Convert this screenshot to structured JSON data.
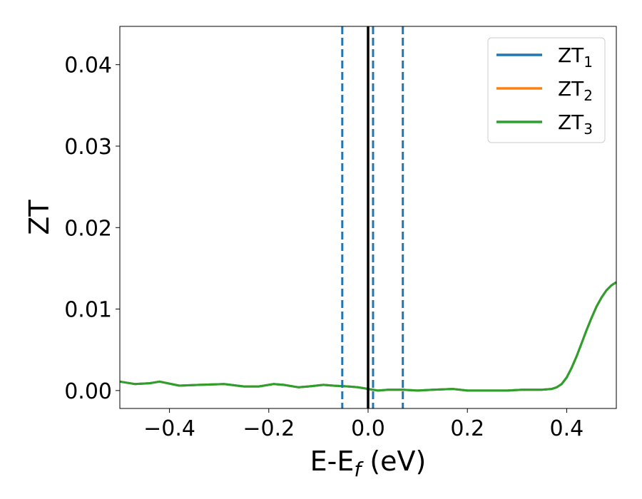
{
  "chart_data": {
    "type": "line",
    "xlabel_main": "E-E",
    "xlabel_sub": "f",
    "xlabel_unit": " (eV)",
    "ylabel": "ZT",
    "xlim": [
      -0.5,
      0.5
    ],
    "ylim": [
      -0.0022,
      0.0447
    ],
    "xticks": [
      -0.4,
      -0.2,
      0.0,
      0.2,
      0.4
    ],
    "xtick_labels": [
      "−0.4",
      "−0.2",
      "0.0",
      "0.2",
      "0.4"
    ],
    "yticks": [
      0.0,
      0.01,
      0.02,
      0.03,
      0.04
    ],
    "ytick_labels": [
      "0.00",
      "0.01",
      "0.02",
      "0.03",
      "0.04"
    ],
    "grid": false,
    "legend_position": "top-right",
    "vlines": [
      {
        "x": 0.0,
        "style": "solid",
        "color": "#000000"
      },
      {
        "x": -0.052,
        "style": "dashed",
        "color": "#1f77b4"
      },
      {
        "x": 0.01,
        "style": "dashed",
        "color": "#1f77b4"
      },
      {
        "x": 0.07,
        "style": "dashed",
        "color": "#1f77b4"
      }
    ],
    "series": [
      {
        "name": "ZT",
        "sub": "1",
        "color": "#1f77b4",
        "x": [
          -0.5,
          -0.47,
          -0.44,
          -0.42,
          -0.38,
          -0.34,
          -0.29,
          -0.25,
          -0.22,
          -0.19,
          -0.17,
          -0.14,
          -0.12,
          -0.09,
          -0.07,
          -0.04,
          -0.02,
          0.0,
          0.02,
          0.04,
          0.07,
          0.1,
          0.13,
          0.17,
          0.2,
          0.25,
          0.28,
          0.31,
          0.33,
          0.35,
          0.37,
          0.38,
          0.39,
          0.4,
          0.41,
          0.42,
          0.43,
          0.44,
          0.45,
          0.46,
          0.47,
          0.48,
          0.49,
          0.5
        ],
        "y": [
          0.0011,
          0.0008,
          0.0009,
          0.0011,
          0.0006,
          0.0007,
          0.0008,
          0.0005,
          0.0005,
          0.0008,
          0.0007,
          0.0004,
          0.0005,
          0.0007,
          0.0006,
          0.0005,
          0.0004,
          0.0002,
          0.0,
          0.0001,
          0.0001,
          0.0,
          0.0001,
          0.0002,
          0.0,
          0.0,
          0.0,
          0.0001,
          0.0001,
          0.0001,
          0.0002,
          0.0004,
          0.0008,
          0.0016,
          0.0028,
          0.0042,
          0.0058,
          0.0074,
          0.0089,
          0.0103,
          0.0114,
          0.0123,
          0.0129,
          0.0133
        ]
      },
      {
        "name": "ZT",
        "sub": "2",
        "color": "#ff7f0e",
        "x": [
          -0.5,
          -0.47,
          -0.44,
          -0.42,
          -0.38,
          -0.34,
          -0.29,
          -0.25,
          -0.22,
          -0.19,
          -0.17,
          -0.14,
          -0.12,
          -0.09,
          -0.07,
          -0.04,
          -0.02,
          0.0,
          0.02,
          0.04,
          0.07,
          0.1,
          0.13,
          0.17,
          0.2,
          0.25,
          0.28,
          0.31,
          0.33,
          0.35,
          0.37,
          0.38,
          0.39,
          0.4,
          0.41,
          0.42,
          0.43,
          0.44,
          0.45,
          0.46,
          0.47,
          0.48,
          0.49,
          0.5
        ],
        "y": [
          0.0011,
          0.0008,
          0.0009,
          0.0011,
          0.0006,
          0.0007,
          0.0008,
          0.0005,
          0.0005,
          0.0008,
          0.0007,
          0.0004,
          0.0005,
          0.0007,
          0.0006,
          0.0005,
          0.0004,
          0.0002,
          0.0,
          0.0001,
          0.0001,
          0.0,
          0.0001,
          0.0002,
          0.0,
          0.0,
          0.0,
          0.0001,
          0.0001,
          0.0001,
          0.0002,
          0.0004,
          0.0008,
          0.0016,
          0.0028,
          0.0042,
          0.0058,
          0.0074,
          0.0089,
          0.0103,
          0.0114,
          0.0123,
          0.0129,
          0.0133
        ]
      },
      {
        "name": "ZT",
        "sub": "3",
        "color": "#2ca02c",
        "x": [
          -0.5,
          -0.47,
          -0.44,
          -0.42,
          -0.38,
          -0.34,
          -0.29,
          -0.25,
          -0.22,
          -0.19,
          -0.17,
          -0.14,
          -0.12,
          -0.09,
          -0.07,
          -0.04,
          -0.02,
          0.0,
          0.02,
          0.04,
          0.07,
          0.1,
          0.13,
          0.17,
          0.2,
          0.25,
          0.28,
          0.31,
          0.33,
          0.35,
          0.37,
          0.38,
          0.39,
          0.4,
          0.41,
          0.42,
          0.43,
          0.44,
          0.45,
          0.46,
          0.47,
          0.48,
          0.49,
          0.5
        ],
        "y": [
          0.0011,
          0.0008,
          0.0009,
          0.0011,
          0.0006,
          0.0007,
          0.0008,
          0.0005,
          0.0005,
          0.0008,
          0.0007,
          0.0004,
          0.0005,
          0.0007,
          0.0006,
          0.0005,
          0.0004,
          0.0002,
          0.0,
          0.0001,
          0.0001,
          0.0,
          0.0001,
          0.0002,
          0.0,
          0.0,
          0.0,
          0.0001,
          0.0001,
          0.0001,
          0.0002,
          0.0004,
          0.0008,
          0.0016,
          0.0028,
          0.0042,
          0.0058,
          0.0074,
          0.0089,
          0.0103,
          0.0114,
          0.0123,
          0.0129,
          0.0133
        ]
      }
    ]
  }
}
